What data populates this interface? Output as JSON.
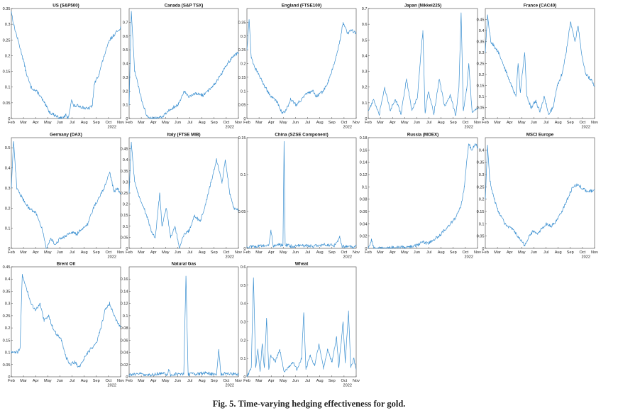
{
  "figure": {
    "caption": "Fig. 5.  Time-varying hedging effectiveness for gold.",
    "series_color": "#3a8fd0",
    "x_ticks": [
      "Feb",
      "Mar",
      "Apr",
      "May",
      "Jun",
      "Jul",
      "Aug",
      "Sep",
      "Oct",
      "Nov"
    ],
    "x_year": "2022"
  },
  "chart_data": [
    {
      "type": "line",
      "title": "US (S&P500)",
      "ylim": [
        0,
        0.35
      ],
      "yticks": [
        0,
        0.05,
        0.1,
        0.15,
        0.2,
        0.25,
        0.3,
        0.35
      ],
      "knots": [
        [
          0,
          0.34
        ],
        [
          0.02,
          0.3
        ],
        [
          0.06,
          0.25
        ],
        [
          0.1,
          0.2
        ],
        [
          0.14,
          0.14
        ],
        [
          0.18,
          0.1
        ],
        [
          0.25,
          0.08
        ],
        [
          0.3,
          0.05
        ],
        [
          0.35,
          0.02
        ],
        [
          0.4,
          0.01
        ],
        [
          0.46,
          0.0
        ],
        [
          0.5,
          0.01
        ],
        [
          0.52,
          0.0
        ],
        [
          0.55,
          0.06
        ],
        [
          0.57,
          0.04
        ],
        [
          0.62,
          0.04
        ],
        [
          0.7,
          0.03
        ],
        [
          0.74,
          0.04
        ],
        [
          0.76,
          0.11
        ],
        [
          0.8,
          0.14
        ],
        [
          0.85,
          0.2
        ],
        [
          0.9,
          0.25
        ],
        [
          0.95,
          0.27
        ],
        [
          1.0,
          0.29
        ]
      ]
    },
    {
      "type": "line",
      "title": "Canada (S&P TSX)",
      "ylim": [
        0,
        0.8
      ],
      "yticks": [
        0,
        0.1,
        0.2,
        0.3,
        0.4,
        0.5,
        0.6,
        0.7
      ],
      "knots": [
        [
          0,
          0.1
        ],
        [
          0.02,
          0.78
        ],
        [
          0.05,
          0.35
        ],
        [
          0.08,
          0.25
        ],
        [
          0.12,
          0.12
        ],
        [
          0.16,
          0.02
        ],
        [
          0.2,
          0.0
        ],
        [
          0.3,
          0.01
        ],
        [
          0.35,
          0.05
        ],
        [
          0.4,
          0.08
        ],
        [
          0.45,
          0.1
        ],
        [
          0.5,
          0.2
        ],
        [
          0.55,
          0.16
        ],
        [
          0.62,
          0.18
        ],
        [
          0.68,
          0.17
        ],
        [
          0.72,
          0.2
        ],
        [
          0.78,
          0.25
        ],
        [
          0.84,
          0.32
        ],
        [
          0.9,
          0.4
        ],
        [
          0.95,
          0.45
        ],
        [
          1.0,
          0.48
        ]
      ]
    },
    {
      "type": "line",
      "title": "England (FTSE100)",
      "ylim": [
        0,
        0.4
      ],
      "yticks": [
        0,
        0.05,
        0.1,
        0.15,
        0.2,
        0.25,
        0.3,
        0.35
      ],
      "knots": [
        [
          0,
          0.25
        ],
        [
          0.02,
          0.36
        ],
        [
          0.04,
          0.22
        ],
        [
          0.08,
          0.18
        ],
        [
          0.12,
          0.15
        ],
        [
          0.16,
          0.12
        ],
        [
          0.22,
          0.08
        ],
        [
          0.28,
          0.06
        ],
        [
          0.32,
          0.02
        ],
        [
          0.36,
          0.03
        ],
        [
          0.4,
          0.07
        ],
        [
          0.45,
          0.05
        ],
        [
          0.5,
          0.07
        ],
        [
          0.55,
          0.09
        ],
        [
          0.6,
          0.1
        ],
        [
          0.64,
          0.08
        ],
        [
          0.7,
          0.1
        ],
        [
          0.75,
          0.14
        ],
        [
          0.8,
          0.2
        ],
        [
          0.85,
          0.28
        ],
        [
          0.88,
          0.35
        ],
        [
          0.92,
          0.31
        ],
        [
          0.96,
          0.32
        ],
        [
          1.0,
          0.31
        ]
      ]
    },
    {
      "type": "line",
      "title": "Japan (Nikkei225)",
      "ylim": [
        0,
        0.7
      ],
      "yticks": [
        0,
        0.1,
        0.2,
        0.3,
        0.4,
        0.5,
        0.6,
        0.7
      ],
      "knots": [
        [
          0,
          0.05
        ],
        [
          0.05,
          0.12
        ],
        [
          0.1,
          0.02
        ],
        [
          0.15,
          0.2
        ],
        [
          0.2,
          0.05
        ],
        [
          0.25,
          0.12
        ],
        [
          0.3,
          0.03
        ],
        [
          0.35,
          0.25
        ],
        [
          0.4,
          0.05
        ],
        [
          0.45,
          0.14
        ],
        [
          0.5,
          0.56
        ],
        [
          0.52,
          0.04
        ],
        [
          0.55,
          0.17
        ],
        [
          0.6,
          0.03
        ],
        [
          0.65,
          0.25
        ],
        [
          0.7,
          0.08
        ],
        [
          0.75,
          0.15
        ],
        [
          0.8,
          0.02
        ],
        [
          0.83,
          0.2
        ],
        [
          0.85,
          0.67
        ],
        [
          0.87,
          0.05
        ],
        [
          0.9,
          0.18
        ],
        [
          0.92,
          0.35
        ],
        [
          0.95,
          0.04
        ],
        [
          1.0,
          0.06
        ]
      ]
    },
    {
      "type": "line",
      "title": "France (CAC40)",
      "ylim": [
        0,
        0.5
      ],
      "yticks": [
        0,
        0.05,
        0.1,
        0.15,
        0.2,
        0.25,
        0.3,
        0.35,
        0.4,
        0.45
      ],
      "knots": [
        [
          0,
          0.3
        ],
        [
          0.02,
          0.47
        ],
        [
          0.05,
          0.35
        ],
        [
          0.08,
          0.33
        ],
        [
          0.12,
          0.3
        ],
        [
          0.16,
          0.25
        ],
        [
          0.2,
          0.2
        ],
        [
          0.24,
          0.15
        ],
        [
          0.28,
          0.1
        ],
        [
          0.3,
          0.25
        ],
        [
          0.32,
          0.12
        ],
        [
          0.36,
          0.3
        ],
        [
          0.38,
          0.1
        ],
        [
          0.42,
          0.05
        ],
        [
          0.46,
          0.08
        ],
        [
          0.5,
          0.03
        ],
        [
          0.54,
          0.1
        ],
        [
          0.58,
          0.02
        ],
        [
          0.62,
          0.05
        ],
        [
          0.66,
          0.15
        ],
        [
          0.7,
          0.2
        ],
        [
          0.74,
          0.3
        ],
        [
          0.78,
          0.44
        ],
        [
          0.82,
          0.35
        ],
        [
          0.85,
          0.42
        ],
        [
          0.88,
          0.3
        ],
        [
          0.92,
          0.2
        ],
        [
          0.96,
          0.18
        ],
        [
          1.0,
          0.15
        ]
      ]
    },
    {
      "type": "line",
      "title": "Germany (DAX)",
      "ylim": [
        0,
        0.55
      ],
      "yticks": [
        0,
        0.1,
        0.2,
        0.3,
        0.4,
        0.5
      ],
      "knots": [
        [
          0,
          0.3
        ],
        [
          0.02,
          0.53
        ],
        [
          0.05,
          0.3
        ],
        [
          0.1,
          0.25
        ],
        [
          0.16,
          0.2
        ],
        [
          0.22,
          0.18
        ],
        [
          0.28,
          0.1
        ],
        [
          0.32,
          0.0
        ],
        [
          0.36,
          0.05
        ],
        [
          0.4,
          0.02
        ],
        [
          0.45,
          0.05
        ],
        [
          0.5,
          0.06
        ],
        [
          0.55,
          0.08
        ],
        [
          0.6,
          0.07
        ],
        [
          0.65,
          0.1
        ],
        [
          0.7,
          0.12
        ],
        [
          0.75,
          0.2
        ],
        [
          0.8,
          0.25
        ],
        [
          0.85,
          0.3
        ],
        [
          0.9,
          0.38
        ],
        [
          0.94,
          0.28
        ],
        [
          0.97,
          0.3
        ],
        [
          1.0,
          0.27
        ]
      ]
    },
    {
      "type": "line",
      "title": "Italy (FTSE MIB)",
      "ylim": [
        0,
        0.5
      ],
      "yticks": [
        0,
        0.05,
        0.1,
        0.15,
        0.2,
        0.25,
        0.3,
        0.35,
        0.4,
        0.45
      ],
      "knots": [
        [
          0,
          0.25
        ],
        [
          0.02,
          0.48
        ],
        [
          0.05,
          0.3
        ],
        [
          0.08,
          0.25
        ],
        [
          0.12,
          0.2
        ],
        [
          0.16,
          0.15
        ],
        [
          0.2,
          0.08
        ],
        [
          0.24,
          0.05
        ],
        [
          0.28,
          0.25
        ],
        [
          0.3,
          0.1
        ],
        [
          0.34,
          0.18
        ],
        [
          0.38,
          0.05
        ],
        [
          0.42,
          0.1
        ],
        [
          0.46,
          0.0
        ],
        [
          0.5,
          0.06
        ],
        [
          0.55,
          0.08
        ],
        [
          0.6,
          0.15
        ],
        [
          0.65,
          0.12
        ],
        [
          0.7,
          0.2
        ],
        [
          0.75,
          0.3
        ],
        [
          0.8,
          0.4
        ],
        [
          0.85,
          0.3
        ],
        [
          0.88,
          0.4
        ],
        [
          0.92,
          0.25
        ],
        [
          0.96,
          0.18
        ],
        [
          1.0,
          0.17
        ]
      ]
    },
    {
      "type": "line",
      "title": "China (SZSE Component)",
      "ylim": [
        0,
        0.15
      ],
      "yticks": [
        0,
        0.05,
        0.1,
        0.15
      ],
      "knots": [
        [
          0,
          0.002
        ],
        [
          0.1,
          0.003
        ],
        [
          0.2,
          0.004
        ],
        [
          0.22,
          0.025
        ],
        [
          0.24,
          0.003
        ],
        [
          0.3,
          0.005
        ],
        [
          0.33,
          0.004
        ],
        [
          0.34,
          0.145
        ],
        [
          0.35,
          0.005
        ],
        [
          0.4,
          0.003
        ],
        [
          0.5,
          0.004
        ],
        [
          0.6,
          0.003
        ],
        [
          0.7,
          0.005
        ],
        [
          0.8,
          0.004
        ],
        [
          0.85,
          0.015
        ],
        [
          0.87,
          0.003
        ],
        [
          0.95,
          0.002
        ],
        [
          1.0,
          0.003
        ]
      ]
    },
    {
      "type": "line",
      "title": "Russia (MOEX)",
      "ylim": [
        0,
        0.18
      ],
      "yticks": [
        0,
        0.02,
        0.04,
        0.06,
        0.08,
        0.1,
        0.12,
        0.14,
        0.16,
        0.18
      ],
      "knots": [
        [
          0,
          0.0
        ],
        [
          0.03,
          0.015
        ],
        [
          0.05,
          0.0
        ],
        [
          0.2,
          0.001
        ],
        [
          0.3,
          0.002
        ],
        [
          0.4,
          0.003
        ],
        [
          0.45,
          0.005
        ],
        [
          0.5,
          0.01
        ],
        [
          0.55,
          0.008
        ],
        [
          0.6,
          0.015
        ],
        [
          0.65,
          0.02
        ],
        [
          0.7,
          0.03
        ],
        [
          0.75,
          0.04
        ],
        [
          0.8,
          0.05
        ],
        [
          0.85,
          0.07
        ],
        [
          0.88,
          0.1
        ],
        [
          0.9,
          0.14
        ],
        [
          0.92,
          0.17
        ],
        [
          0.95,
          0.16
        ],
        [
          0.98,
          0.17
        ],
        [
          1.0,
          0.165
        ]
      ]
    },
    {
      "type": "line",
      "title": "MSCI Europe",
      "ylim": [
        0,
        0.45
      ],
      "yticks": [
        0,
        0.05,
        0.1,
        0.15,
        0.2,
        0.25,
        0.3,
        0.35,
        0.4
      ],
      "knots": [
        [
          0,
          0.2
        ],
        [
          0.02,
          0.42
        ],
        [
          0.04,
          0.28
        ],
        [
          0.08,
          0.2
        ],
        [
          0.12,
          0.15
        ],
        [
          0.18,
          0.1
        ],
        [
          0.24,
          0.08
        ],
        [
          0.3,
          0.05
        ],
        [
          0.36,
          0.01
        ],
        [
          0.4,
          0.05
        ],
        [
          0.44,
          0.07
        ],
        [
          0.48,
          0.06
        ],
        [
          0.52,
          0.08
        ],
        [
          0.56,
          0.1
        ],
        [
          0.6,
          0.09
        ],
        [
          0.65,
          0.11
        ],
        [
          0.7,
          0.15
        ],
        [
          0.75,
          0.2
        ],
        [
          0.8,
          0.25
        ],
        [
          0.85,
          0.26
        ],
        [
          0.9,
          0.24
        ],
        [
          0.95,
          0.23
        ],
        [
          1.0,
          0.24
        ]
      ]
    },
    {
      "type": "line",
      "title": "Brent Oil",
      "ylim": [
        0,
        0.45
      ],
      "yticks": [
        0,
        0.05,
        0.1,
        0.15,
        0.2,
        0.25,
        0.3,
        0.35,
        0.4,
        0.45
      ],
      "knots": [
        [
          0,
          0.1
        ],
        [
          0.06,
          0.1
        ],
        [
          0.08,
          0.12
        ],
        [
          0.1,
          0.42
        ],
        [
          0.14,
          0.36
        ],
        [
          0.18,
          0.3
        ],
        [
          0.22,
          0.27
        ],
        [
          0.26,
          0.3
        ],
        [
          0.3,
          0.23
        ],
        [
          0.34,
          0.25
        ],
        [
          0.38,
          0.2
        ],
        [
          0.42,
          0.17
        ],
        [
          0.46,
          0.15
        ],
        [
          0.5,
          0.08
        ],
        [
          0.54,
          0.05
        ],
        [
          0.58,
          0.06
        ],
        [
          0.62,
          0.04
        ],
        [
          0.66,
          0.07
        ],
        [
          0.7,
          0.1
        ],
        [
          0.74,
          0.12
        ],
        [
          0.78,
          0.14
        ],
        [
          0.82,
          0.2
        ],
        [
          0.86,
          0.28
        ],
        [
          0.9,
          0.3
        ],
        [
          0.94,
          0.25
        ],
        [
          1.0,
          0.2
        ]
      ]
    },
    {
      "type": "line",
      "title": "Natural Gas",
      "ylim": [
        0,
        0.18
      ],
      "yticks": [
        0,
        0.02,
        0.04,
        0.06,
        0.08,
        0.1,
        0.12,
        0.14,
        0.16
      ],
      "knots": [
        [
          0,
          0.003
        ],
        [
          0.1,
          0.005
        ],
        [
          0.2,
          0.003
        ],
        [
          0.3,
          0.006
        ],
        [
          0.35,
          0.003
        ],
        [
          0.36,
          0.012
        ],
        [
          0.38,
          0.003
        ],
        [
          0.45,
          0.005
        ],
        [
          0.5,
          0.004
        ],
        [
          0.52,
          0.165
        ],
        [
          0.54,
          0.004
        ],
        [
          0.6,
          0.005
        ],
        [
          0.7,
          0.006
        ],
        [
          0.8,
          0.004
        ],
        [
          0.82,
          0.045
        ],
        [
          0.84,
          0.004
        ],
        [
          0.9,
          0.006
        ],
        [
          1.0,
          0.004
        ]
      ]
    },
    {
      "type": "line",
      "title": "Wheat",
      "ylim": [
        0,
        0.6
      ],
      "yticks": [
        0,
        0.1,
        0.2,
        0.3,
        0.4,
        0.5,
        0.6
      ],
      "knots": [
        [
          0,
          0.0
        ],
        [
          0.04,
          0.05
        ],
        [
          0.06,
          0.54
        ],
        [
          0.08,
          0.05
        ],
        [
          0.1,
          0.15
        ],
        [
          0.12,
          0.03
        ],
        [
          0.14,
          0.18
        ],
        [
          0.16,
          0.05
        ],
        [
          0.18,
          0.32
        ],
        [
          0.2,
          0.04
        ],
        [
          0.22,
          0.12
        ],
        [
          0.26,
          0.08
        ],
        [
          0.3,
          0.15
        ],
        [
          0.34,
          0.03
        ],
        [
          0.38,
          0.05
        ],
        [
          0.42,
          0.08
        ],
        [
          0.46,
          0.04
        ],
        [
          0.5,
          0.1
        ],
        [
          0.52,
          0.35
        ],
        [
          0.54,
          0.04
        ],
        [
          0.58,
          0.12
        ],
        [
          0.62,
          0.06
        ],
        [
          0.66,
          0.18
        ],
        [
          0.7,
          0.05
        ],
        [
          0.74,
          0.15
        ],
        [
          0.78,
          0.08
        ],
        [
          0.82,
          0.22
        ],
        [
          0.84,
          0.05
        ],
        [
          0.88,
          0.3
        ],
        [
          0.9,
          0.08
        ],
        [
          0.93,
          0.36
        ],
        [
          0.95,
          0.05
        ],
        [
          0.98,
          0.1
        ],
        [
          1.0,
          0.04
        ]
      ]
    }
  ]
}
